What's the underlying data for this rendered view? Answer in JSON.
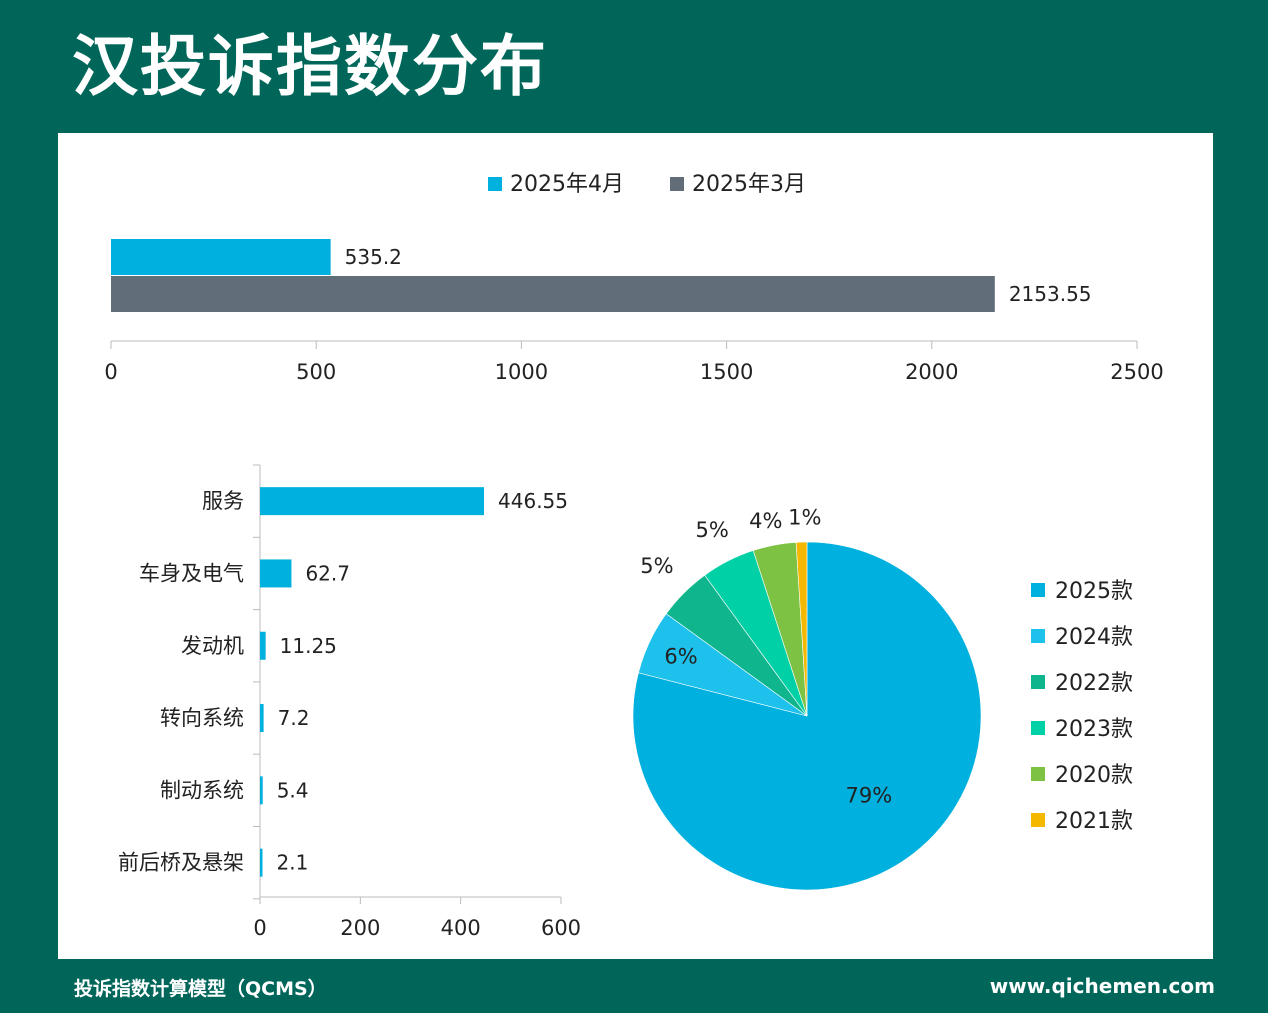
{
  "page_title": "汉投诉指数分布",
  "footer": {
    "left": "投诉指数计算模型（QCMS）",
    "right": "www.qichemen.com"
  },
  "colors": {
    "background": "#00665a",
    "april": "#00b0de",
    "march": "#626d7a"
  },
  "chart_data": [
    {
      "type": "bar",
      "orientation": "horizontal",
      "series": [
        {
          "name": "2025年4月",
          "values": [
            535.2
          ],
          "color": "#00b0de"
        },
        {
          "name": "2025年3月",
          "values": [
            2153.55
          ],
          "color": "#626d7a"
        }
      ],
      "data_labels": [
        "535.2",
        "2153.55"
      ],
      "xlim": [
        0,
        2500
      ],
      "xticks": [
        0,
        500,
        1000,
        1500,
        2000,
        2500
      ],
      "grid": false,
      "legend": "top-center"
    },
    {
      "type": "bar",
      "orientation": "horizontal",
      "categories": [
        "服务",
        "车身及电气",
        "发动机",
        "转向系统",
        "制动系统",
        "前后桥及悬架"
      ],
      "values": [
        446.55,
        62.7,
        11.25,
        7.2,
        5.4,
        2.1
      ],
      "data_labels": [
        "446.55",
        "62.7",
        "11.25",
        "7.2",
        "5.4",
        "2.1"
      ],
      "color": "#00b0de",
      "xlim": [
        0,
        600
      ],
      "xticks": [
        0,
        200,
        400,
        600
      ],
      "grid": false
    },
    {
      "type": "pie",
      "slices": [
        {
          "label": "2025款",
          "value": 79,
          "text": "79%",
          "color": "#00b0de"
        },
        {
          "label": "2024款",
          "value": 6,
          "text": "6%",
          "color": "#1ec1ec"
        },
        {
          "label": "2022款",
          "value": 5,
          "text": "5%",
          "color": "#0fb58d"
        },
        {
          "label": "2023款",
          "value": 5,
          "text": "5%",
          "color": "#00d0a6"
        },
        {
          "label": "2020款",
          "value": 4,
          "text": "4%",
          "color": "#7dc242"
        },
        {
          "label": "2021款",
          "value": 1,
          "text": "1%",
          "color": "#f5b800"
        }
      ],
      "legend": "right"
    }
  ]
}
